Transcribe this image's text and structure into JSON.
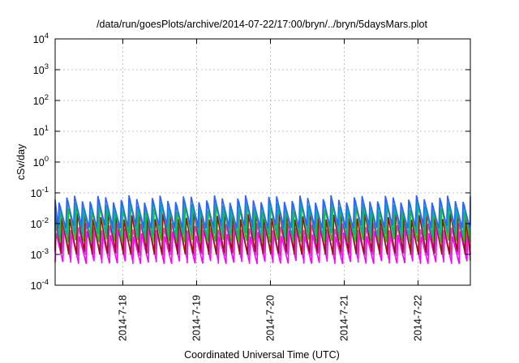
{
  "chart_data": {
    "type": "line",
    "title": "/data/run/goesPlots/archive/2014-07-22/17:00/bryn/../bryn/5daysMars.plot",
    "xlabel": "Coordinated Universal Time (UTC)",
    "ylabel": "cSv/day",
    "y_scale": "log",
    "ylim_exponents": [
      -4,
      4
    ],
    "y_tick_labels": [
      {
        "base": "10",
        "exp": "-4"
      },
      {
        "base": "10",
        "exp": "-3"
      },
      {
        "base": "10",
        "exp": "-2"
      },
      {
        "base": "10",
        "exp": "-1"
      },
      {
        "base": "10",
        "exp": "0"
      },
      {
        "base": "10",
        "exp": "1"
      },
      {
        "base": "10",
        "exp": "2"
      },
      {
        "base": "10",
        "exp": "3"
      },
      {
        "base": "10",
        "exp": "4"
      }
    ],
    "x_range_days": [
      "2014-07-17 02:00",
      "2014-07-22 17:00"
    ],
    "x_ticks": [
      "2014-7-18",
      "2014-7-19",
      "2014-7-20",
      "2014-7-21",
      "2014-7-22"
    ],
    "grid": true,
    "sawtooth_cycles_per_day": 9.5,
    "series": [
      {
        "color": "#ff00ff",
        "peak_log": -2.3,
        "trough_log": -3.25
      },
      {
        "color": "#cc44cc",
        "peak_log": -2.1,
        "trough_log": -3.0
      },
      {
        "color": "#9a1010",
        "peak_log": -1.75,
        "trough_log": -2.95
      },
      {
        "color": "#20c020",
        "peak_log": -1.5,
        "trough_log": -2.55
      },
      {
        "color": "#00b0b0",
        "peak_log": -1.35,
        "trough_log": -2.35
      },
      {
        "color": "#3060ff",
        "peak_log": -1.2,
        "trough_log": -2.1
      }
    ]
  }
}
